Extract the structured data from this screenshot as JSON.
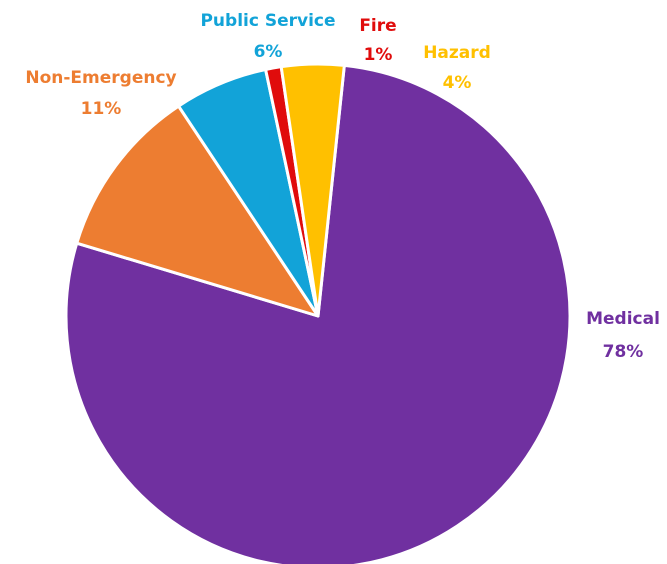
{
  "chart_data": {
    "type": "pie",
    "title": "",
    "start_angle_deg": 6,
    "slices": [
      {
        "label": "Medical",
        "value": 78,
        "value_label": "78%",
        "color": "#7030A0"
      },
      {
        "label": "Non-Emergency",
        "value": 11,
        "value_label": "11%",
        "color": "#ED7D31"
      },
      {
        "label": "Public Service",
        "value": 6,
        "value_label": "6%",
        "color": "#12A3D8"
      },
      {
        "label": "Fire",
        "value": 1,
        "value_label": "1%",
        "color": "#E00C0C"
      },
      {
        "label": "Hazard",
        "value": 4,
        "value_label": "4%",
        "color": "#FFC000"
      }
    ]
  }
}
